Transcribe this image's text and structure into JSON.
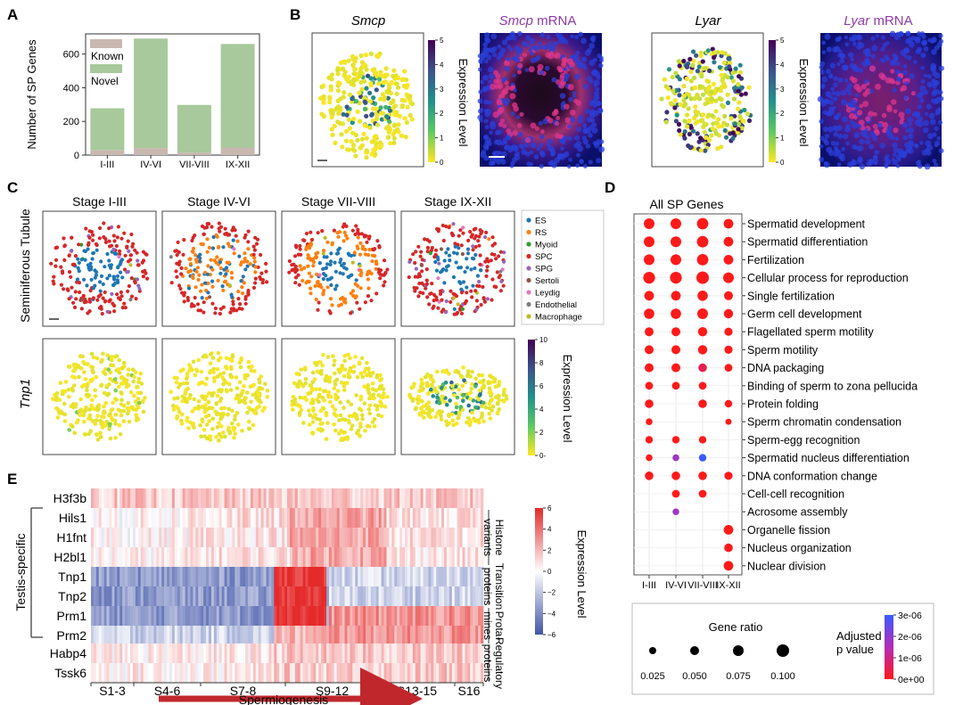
{
  "panels": {
    "a": "A",
    "b": "B",
    "c": "C",
    "d": "D",
    "e": "E"
  },
  "colors": {
    "known": "#c8b8b0",
    "novel": "#a7c99b",
    "purple": "#8e3ba6",
    "red_low": "#ff1a1a",
    "blue_high": "#3a5bff",
    "heat_pos": "#e52a2a",
    "heat_neg": "#3f54a8",
    "micro_bg": "#0a0f6a",
    "micro_fg": "#ff3c8a"
  },
  "chart_data": [
    {
      "id": "a",
      "type": "bar",
      "ylabel": "Number of SP Genes",
      "categories": [
        "I-III",
        "IV-VI",
        "VII-VIII",
        "IX-XII"
      ],
      "series": [
        {
          "name": "Known",
          "values": [
            30,
            42,
            15,
            45
          ]
        },
        {
          "name": "Novel",
          "values": [
            248,
            650,
            283,
            615
          ]
        }
      ],
      "ylim": [
        0,
        720
      ],
      "yticks": [
        "0",
        "200",
        "400",
        "600"
      ]
    },
    {
      "id": "b",
      "type": "scatter",
      "plots": [
        {
          "title": "Smcp",
          "kind": "spatial"
        },
        {
          "title_italic": "Smcp",
          "title_rest": " mRNA",
          "kind": "image"
        },
        {
          "title": "Lyar",
          "kind": "spatial"
        },
        {
          "title_italic": "Lyar",
          "title_rest": " mRNA",
          "kind": "image"
        }
      ],
      "colorbar_label": "Expression Level",
      "colorbar_ticks": [
        "0",
        "1",
        "2",
        "3",
        "4",
        "5"
      ]
    },
    {
      "id": "c",
      "type": "scatter",
      "stages": [
        "Stage I-III",
        "Stage IV-VI",
        "Stage VII-VIII",
        "Stage IX-XII"
      ],
      "row_labels": [
        "Seminiferous Tubule",
        "Tnp1"
      ],
      "legend": [
        {
          "name": "ES",
          "color": "#1f77b4"
        },
        {
          "name": "RS",
          "color": "#ff7f0e"
        },
        {
          "name": "Myoid",
          "color": "#2ca02c"
        },
        {
          "name": "SPC",
          "color": "#d62728"
        },
        {
          "name": "SPG",
          "color": "#9467bd"
        },
        {
          "name": "Sertoli",
          "color": "#8c564b"
        },
        {
          "name": "Leydig",
          "color": "#e377c2"
        },
        {
          "name": "Endothelial",
          "color": "#7f7f7f"
        },
        {
          "name": "Macrophage",
          "color": "#bcbd22"
        }
      ],
      "colorbar_label": "Expression Level",
      "colorbar_ticks": [
        "0-",
        "2",
        "4",
        "6",
        "8",
        "10"
      ]
    },
    {
      "id": "d",
      "type": "scatter",
      "title": "All SP Genes",
      "categories": [
        "I-III",
        "IV-VI",
        "VII-VIII",
        "IX-XII"
      ],
      "terms": [
        {
          "name": "Spermatid development",
          "ratio": [
            0.075,
            0.075,
            0.085,
            0.06
          ],
          "p": [
            0,
            0,
            0,
            0
          ]
        },
        {
          "name": "Spermatid differentiation",
          "ratio": [
            0.075,
            0.075,
            0.085,
            0.06
          ],
          "p": [
            0,
            0,
            0,
            0
          ]
        },
        {
          "name": "Fertilization",
          "ratio": [
            0.075,
            0.075,
            0.085,
            0.06
          ],
          "p": [
            0,
            0,
            0,
            0
          ]
        },
        {
          "name": "Cellular process for reproduction",
          "ratio": [
            0.09,
            0.09,
            0.1,
            0.075
          ],
          "p": [
            0,
            0,
            0,
            0
          ]
        },
        {
          "name": "Single fertilization",
          "ratio": [
            0.06,
            0.06,
            0.07,
            0.05
          ],
          "p": [
            0,
            0,
            0,
            0
          ]
        },
        {
          "name": "Germ cell development",
          "ratio": [
            0.07,
            0.07,
            0.075,
            0.055
          ],
          "p": [
            0,
            0,
            0,
            0
          ]
        },
        {
          "name": "Flagellated sperm motility",
          "ratio": [
            0.05,
            0.05,
            0.055,
            0.04
          ],
          "p": [
            0,
            0,
            0,
            0
          ]
        },
        {
          "name": "Sperm motility",
          "ratio": [
            0.05,
            0.05,
            0.055,
            0.04
          ],
          "p": [
            0,
            0,
            0,
            0
          ]
        },
        {
          "name": "DNA packaging",
          "ratio": [
            0.05,
            0.05,
            0.045,
            0.035
          ],
          "p": [
            0,
            0,
            5e-07,
            0
          ]
        },
        {
          "name": "Binding of sperm to zona pellucida",
          "ratio": [
            0.035,
            0.035,
            0.035,
            null
          ],
          "p": [
            0,
            0,
            0,
            null
          ]
        },
        {
          "name": "Protein folding",
          "ratio": [
            0.045,
            null,
            0.045,
            0.03
          ],
          "p": [
            0,
            null,
            0,
            0
          ]
        },
        {
          "name": "Sperm chromatin condensation",
          "ratio": [
            0.02,
            null,
            null,
            0.012
          ],
          "p": [
            0,
            null,
            null,
            0
          ]
        },
        {
          "name": "Sperm-egg recognition",
          "ratio": [
            0.03,
            0.03,
            0.03,
            null
          ],
          "p": [
            0,
            0,
            0,
            null
          ]
        },
        {
          "name": "Spermatid nucleus differentiation",
          "ratio": [
            0.02,
            0.02,
            0.03,
            null
          ],
          "p": [
            0,
            1.8e-06,
            3e-06,
            null
          ]
        },
        {
          "name": "DNA conformation change",
          "ratio": [
            0.045,
            0.045,
            0.045,
            0.04
          ],
          "p": [
            0,
            0,
            0,
            0
          ]
        },
        {
          "name": "Cell-cell recognition",
          "ratio": [
            null,
            0.035,
            0.035,
            null
          ],
          "p": [
            null,
            0,
            0,
            null
          ]
        },
        {
          "name": "Acrosome assembly",
          "ratio": [
            null,
            0.018,
            null,
            null
          ],
          "p": [
            null,
            1.8e-06,
            null,
            null
          ]
        },
        {
          "name": "Organelle fission",
          "ratio": [
            null,
            null,
            null,
            0.06
          ],
          "p": [
            null,
            null,
            null,
            0
          ]
        },
        {
          "name": "Nucleus organization",
          "ratio": [
            null,
            null,
            null,
            0.045
          ],
          "p": [
            null,
            null,
            null,
            0
          ]
        },
        {
          "name": "Nuclear division",
          "ratio": [
            null,
            null,
            null,
            0.06
          ],
          "p": [
            null,
            null,
            null,
            0
          ]
        }
      ],
      "size_legend_title": "Gene ratio",
      "size_legend": [
        "0.025",
        "0.050",
        "0.075",
        "0.100"
      ],
      "size_values": [
        0.025,
        0.05,
        0.075,
        0.1
      ],
      "color_legend_title": "Adjusted p value",
      "color_legend_ticks": [
        "3e-06",
        "2e-06",
        "1e-06",
        "0e+00"
      ]
    },
    {
      "id": "e",
      "type": "heatmap",
      "genes": [
        "H3f3b",
        "Hils1",
        "H1fnt",
        "H2bl1",
        "Tnp1",
        "Tnp2",
        "Prm1",
        "Prm2",
        "Habp4",
        "Tssk6"
      ],
      "group_left": "Testis-specific",
      "group_right": [
        "Histone variants",
        "Transition proteins",
        "Prota- mines",
        "Regulatory proteins"
      ],
      "stages": [
        "S1-3",
        "S4-6",
        "S7-8",
        "S9-12",
        "S13-15",
        "S16"
      ],
      "arrow_label": "Spermiogenesis",
      "colorbar_label": "Expression Level",
      "colorbar_ticks": [
        "6",
        "4",
        "2",
        "0",
        "−2",
        "−4",
        "−6"
      ],
      "zlim": [
        -6,
        6
      ]
    }
  ]
}
